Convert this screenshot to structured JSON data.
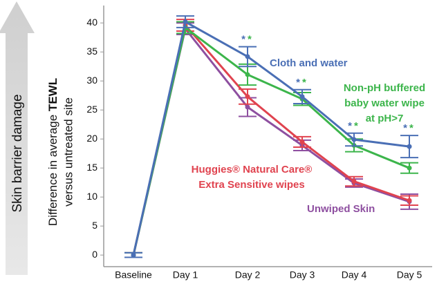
{
  "chart_data": {
    "type": "line",
    "side_arrow_label": "Skin barrier damage",
    "y_label": {
      "prefix": "Difference in average",
      "bold": "TEWL",
      "line2": "versus untreated site"
    },
    "categories": [
      "Baseline",
      "Day 1",
      "Day 2",
      "Day 3",
      "Day 4",
      "Day 5"
    ],
    "ylim": [
      -2,
      43
    ],
    "yticks": [
      0,
      5,
      10,
      15,
      20,
      25,
      30,
      35,
      40
    ],
    "series": [
      {
        "name": [
          "Cloth and water"
        ],
        "color": "#4a6fb5",
        "values": [
          0,
          40.2,
          34.2,
          27.3,
          19.9,
          18.7
        ],
        "errors": [
          0.4,
          1.0,
          1.7,
          1.2,
          1.1,
          1.9
        ]
      },
      {
        "name": [
          "Non-pH buffered",
          "baby water wipe",
          "at pH>7"
        ],
        "color": "#3cb54b",
        "values": [
          0,
          39.2,
          31.1,
          26.9,
          18.9,
          15.0
        ],
        "errors": [
          0.4,
          1.0,
          1.8,
          1.1,
          1.1,
          0.9
        ]
      },
      {
        "name": [
          "Huggies® Natural Care®",
          "Extra Sensitive wipes"
        ],
        "color": "#e0434f",
        "values": [
          0,
          39.6,
          27.3,
          19.5,
          12.7,
          9.4
        ],
        "errors": [
          0.4,
          1.0,
          1.3,
          0.9,
          0.8,
          0.8
        ]
      },
      {
        "name": [
          "Unwiped Skin"
        ],
        "color": "#8e4fa0",
        "values": [
          0,
          39.0,
          25.5,
          18.9,
          12.4,
          9.2
        ],
        "errors": [
          0.4,
          1.0,
          1.6,
          0.9,
          0.7,
          1.3
        ]
      }
    ],
    "significance": [
      null,
      null,
      "**",
      "**",
      "**",
      "**"
    ]
  }
}
